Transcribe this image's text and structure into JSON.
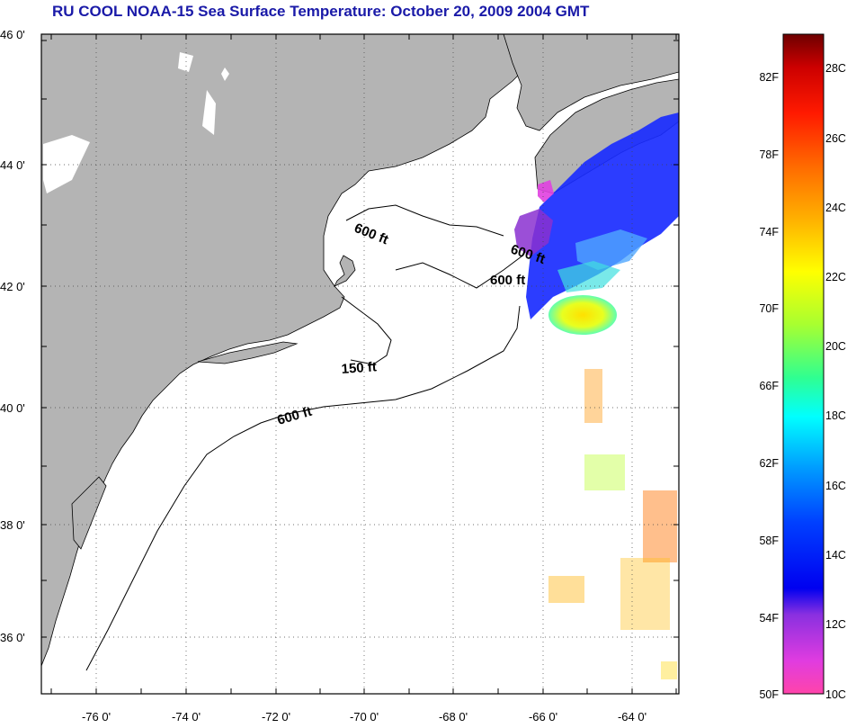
{
  "title": "RU COOL  NOAA-15  Sea Surface Temperature:  October 20, 2009 2004 GMT",
  "map": {
    "lat_ticks": [
      "46 0'",
      "44 0'",
      "42 0'",
      "40 0'",
      "38 0'",
      "36 0'"
    ],
    "lon_ticks": [
      "-76 0'",
      "-74 0'",
      "-72 0'",
      "-70 0'",
      "-68 0'",
      "-66 0'",
      "-64 0'"
    ],
    "contour_labels": [
      "600 ft",
      "600 ft",
      "600 ft",
      "150 ft",
      "600 ft"
    ],
    "colors": {
      "land": "#b4b4b4",
      "ocean": "#ffffff",
      "grid": "#444444"
    }
  },
  "colorbar": {
    "fahrenheit_ticks": [
      "82F",
      "78F",
      "74F",
      "70F",
      "66F",
      "62F",
      "58F",
      "54F",
      "50F"
    ],
    "celsius_ticks": [
      "28C",
      "26C",
      "24C",
      "22C",
      "20C",
      "18C",
      "16C",
      "14C",
      "12C",
      "10C"
    ]
  }
}
